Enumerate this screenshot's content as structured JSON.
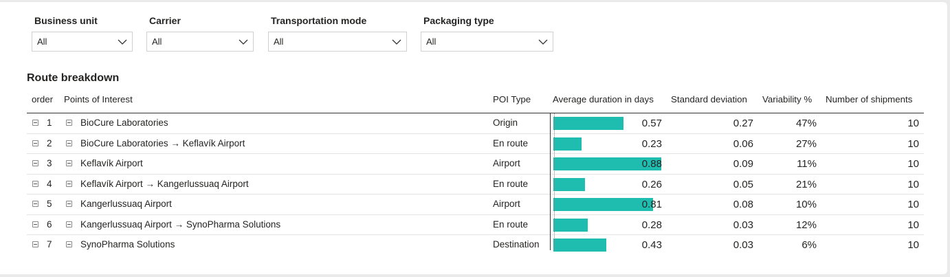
{
  "filters": [
    {
      "label": "Business unit",
      "value": "All"
    },
    {
      "label": "Carrier",
      "value": "All"
    },
    {
      "label": "Transportation mode",
      "value": "All"
    },
    {
      "label": "Packaging type",
      "value": "All"
    }
  ],
  "table": {
    "title": "Route breakdown",
    "headers": {
      "order": "order",
      "poi": "Points of Interest",
      "poi_type": "POI Type",
      "avg": "Average duration in days",
      "std": "Standard deviation",
      "var": "Variability %",
      "ship": "Number of shipments"
    },
    "bar_color": "#1ebdb0",
    "bar_max": 0.88,
    "rows": [
      {
        "order": "1",
        "poi": "BioCure Laboratories",
        "type": "Origin",
        "avg": "0.57",
        "avg_value": 0.57,
        "std": "0.27",
        "var": "47%",
        "ship": "10"
      },
      {
        "order": "2",
        "poi": "BioCure Laboratories → Keflavík Airport",
        "type": "En route",
        "avg": "0.23",
        "avg_value": 0.23,
        "std": "0.06",
        "var": "27%",
        "ship": "10"
      },
      {
        "order": "3",
        "poi": "Keflavík Airport",
        "type": "Airport",
        "avg": "0.88",
        "avg_value": 0.88,
        "std": "0.09",
        "var": "11%",
        "ship": "10"
      },
      {
        "order": "4",
        "poi": "Keflavík Airport → Kangerlussuaq Airport",
        "type": "En route",
        "avg": "0.26",
        "avg_value": 0.26,
        "std": "0.05",
        "var": "21%",
        "ship": "10"
      },
      {
        "order": "5",
        "poi": "Kangerlussuaq Airport",
        "type": "Airport",
        "avg": "0.81",
        "avg_value": 0.81,
        "std": "0.08",
        "var": "10%",
        "ship": "10"
      },
      {
        "order": "6",
        "poi": "Kangerlussuaq Airport → SynoPharma Solutions",
        "type": "En route",
        "avg": "0.28",
        "avg_value": 0.28,
        "std": "0.03",
        "var": "12%",
        "ship": "10"
      },
      {
        "order": "7",
        "poi": "SynoPharma Solutions",
        "type": "Destination",
        "avg": "0.43",
        "avg_value": 0.43,
        "std": "0.03",
        "var": "6%",
        "ship": "10"
      }
    ]
  }
}
